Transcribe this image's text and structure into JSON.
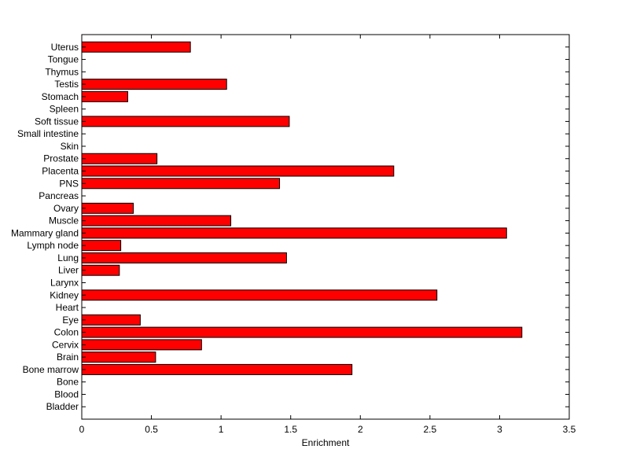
{
  "chart_data": {
    "type": "bar",
    "orientation": "horizontal",
    "title": "",
    "xlabel": "Enrichment",
    "ylabel": "",
    "xlim": [
      0,
      3.5
    ],
    "xticks": [
      0,
      0.5,
      1,
      1.5,
      2,
      2.5,
      3,
      3.5
    ],
    "xtick_labels": [
      "0",
      "0.5",
      "1",
      "1.5",
      "2",
      "2.5",
      "3",
      "3.5"
    ],
    "bar_color": "#ff0000",
    "grid": false,
    "categories": [
      "Bladder",
      "Blood",
      "Bone",
      "Bone marrow",
      "Brain",
      "Cervix",
      "Colon",
      "Eye",
      "Heart",
      "Kidney",
      "Larynx",
      "Liver",
      "Lung",
      "Lymph node",
      "Mammary gland",
      "Muscle",
      "Ovary",
      "Pancreas",
      "PNS",
      "Placenta",
      "Prostate",
      "Skin",
      "Small intestine",
      "Soft tissue",
      "Spleen",
      "Stomach",
      "Testis",
      "Thymus",
      "Tongue",
      "Uterus"
    ],
    "values": [
      0,
      0,
      0,
      1.94,
      0.53,
      0.86,
      3.16,
      0.42,
      0,
      2.55,
      0,
      0.27,
      1.47,
      0.28,
      3.05,
      1.07,
      0.37,
      0,
      1.42,
      2.24,
      0.54,
      0,
      0,
      1.49,
      0,
      0.33,
      1.04,
      0,
      0,
      0.78
    ]
  }
}
